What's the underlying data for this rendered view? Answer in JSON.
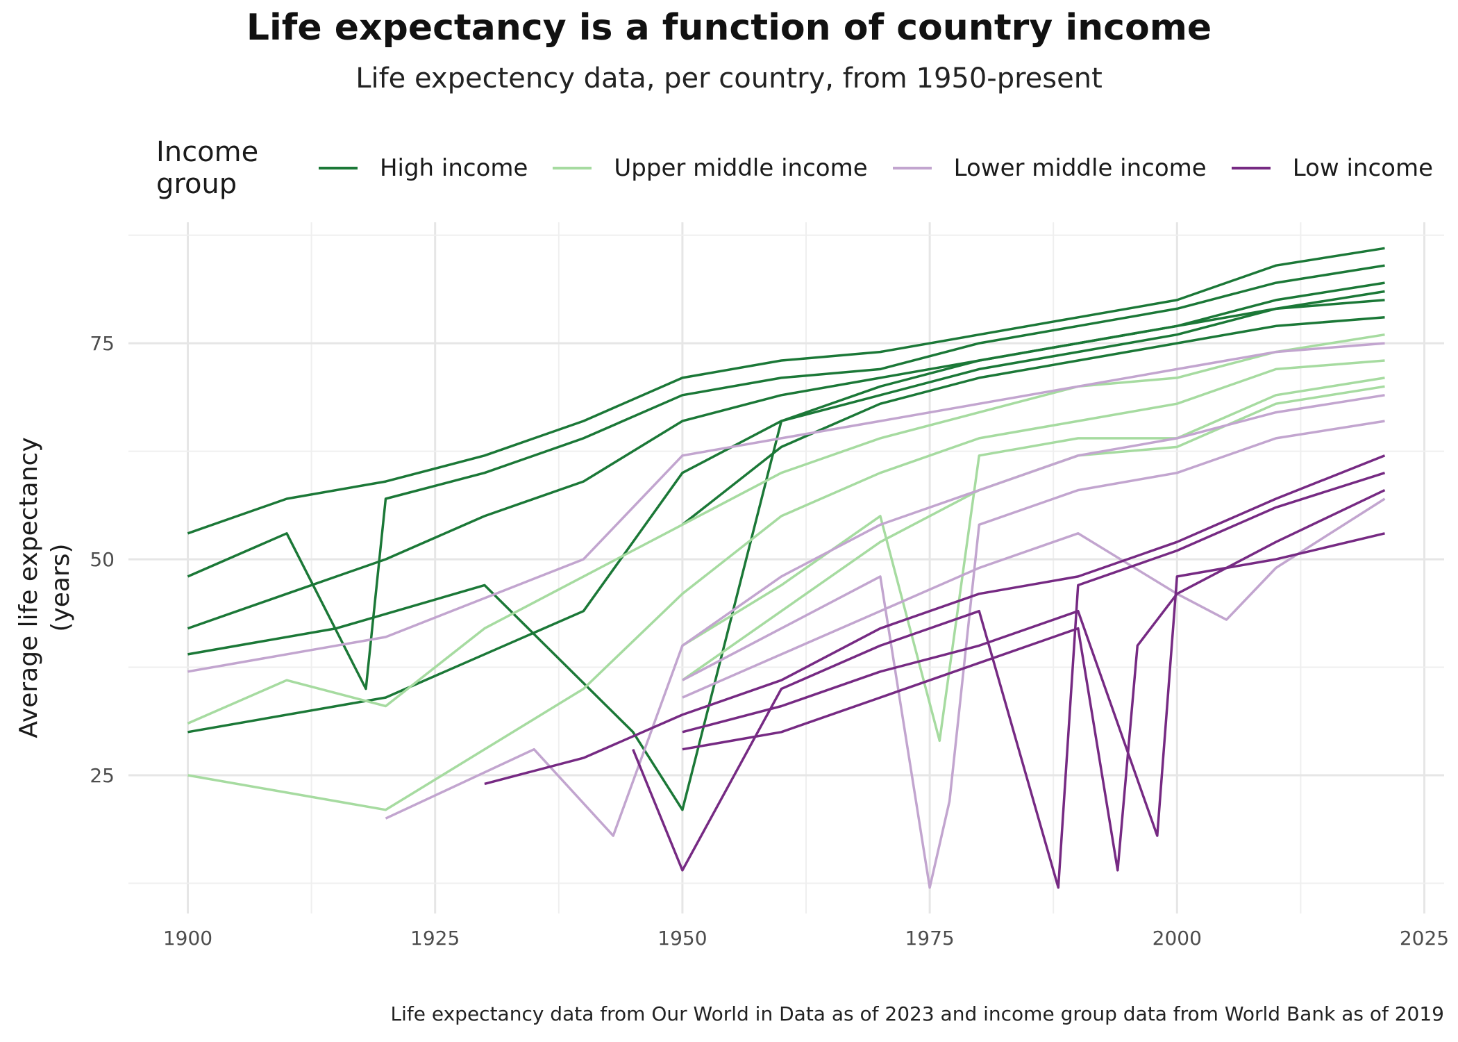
{
  "chart_data": {
    "type": "line",
    "title": "Life expectancy is a function of country income",
    "subtitle": "Life expectency data, per country, from 1950-present",
    "xlabel": "",
    "ylabel": "Average life expectancy\n(years)",
    "caption": "Life expectancy data from Our World in Data as of 2023 and income group data from World Bank as of 2019",
    "xlim": [
      1894,
      2027
    ],
    "ylim": [
      9,
      89
    ],
    "x_ticks": [
      1900,
      1925,
      1950,
      1975,
      2000,
      2025
    ],
    "y_ticks": [
      25,
      50,
      75
    ],
    "grid": true,
    "legend": {
      "title": "Income group",
      "placement": "top",
      "items": [
        {
          "name": "High income",
          "color": "#1b7837"
        },
        {
          "name": "Upper middle income",
          "color": "#a6dba0"
        },
        {
          "name": "Lower middle income",
          "color": "#c2a5cf"
        },
        {
          "name": "Low income",
          "color": "#762a83"
        }
      ]
    },
    "series": [
      {
        "group": "High income",
        "x": [
          1900,
          1910,
          1920,
          1930,
          1940,
          1950,
          1960,
          1970,
          1980,
          1990,
          2000,
          2010,
          2021
        ],
        "y": [
          53,
          57,
          59,
          62,
          66,
          71,
          73,
          74,
          76,
          78,
          80,
          84,
          86
        ]
      },
      {
        "group": "High income",
        "x": [
          1900,
          1910,
          1918,
          1920,
          1930,
          1940,
          1950,
          1960,
          1970,
          1980,
          1990,
          2000,
          2010,
          2021
        ],
        "y": [
          48,
          53,
          35,
          57,
          60,
          64,
          69,
          71,
          72,
          75,
          77,
          79,
          82,
          84
        ]
      },
      {
        "group": "High income",
        "x": [
          1900,
          1910,
          1920,
          1930,
          1940,
          1950,
          1960,
          1970,
          1980,
          1990,
          2000,
          2010,
          2021
        ],
        "y": [
          42,
          46,
          50,
          55,
          59,
          66,
          69,
          71,
          73,
          75,
          77,
          80,
          82
        ]
      },
      {
        "group": "High income",
        "x": [
          1900,
          1915,
          1930,
          1945,
          1950,
          1960,
          1970,
          1980,
          1990,
          2000,
          2010,
          2021
        ],
        "y": [
          39,
          42,
          47,
          30,
          21,
          66,
          69,
          72,
          74,
          76,
          79,
          81
        ]
      },
      {
        "group": "High income",
        "x": [
          1900,
          1920,
          1940,
          1950,
          1960,
          1970,
          1980,
          1990,
          2000,
          2010,
          2021
        ],
        "y": [
          30,
          34,
          44,
          60,
          66,
          70,
          73,
          75,
          77,
          79,
          80
        ]
      },
      {
        "group": "High income",
        "x": [
          1950,
          1960,
          1970,
          1980,
          1990,
          2000,
          2010,
          2021
        ],
        "y": [
          54,
          63,
          68,
          71,
          73,
          75,
          77,
          78
        ]
      },
      {
        "group": "Upper middle income",
        "x": [
          1900,
          1910,
          1920,
          1930,
          1940,
          1950,
          1960,
          1970,
          1980,
          1990,
          2000,
          2010,
          2021
        ],
        "y": [
          31,
          36,
          33,
          42,
          48,
          54,
          60,
          64,
          67,
          70,
          71,
          74,
          76
        ]
      },
      {
        "group": "Upper middle income",
        "x": [
          1900,
          1920,
          1940,
          1950,
          1960,
          1970,
          1980,
          1990,
          2000,
          2010,
          2021
        ],
        "y": [
          25,
          21,
          35,
          46,
          55,
          60,
          64,
          66,
          68,
          72,
          73
        ]
      },
      {
        "group": "Upper middle income",
        "x": [
          1950,
          1960,
          1970,
          1976,
          1980,
          1990,
          2000,
          2010,
          2021
        ],
        "y": [
          40,
          47,
          55,
          29,
          62,
          64,
          64,
          69,
          71
        ]
      },
      {
        "group": "Upper middle income",
        "x": [
          1950,
          1960,
          1970,
          1980,
          1990,
          2000,
          2010,
          2021
        ],
        "y": [
          36,
          44,
          52,
          58,
          62,
          63,
          68,
          70
        ]
      },
      {
        "group": "Lower middle income",
        "x": [
          1900,
          1920,
          1940,
          1950,
          1960,
          1970,
          1980,
          1990,
          2000,
          2010,
          2021
        ],
        "y": [
          37,
          41,
          50,
          62,
          64,
          66,
          68,
          70,
          72,
          74,
          75
        ]
      },
      {
        "group": "Lower middle income",
        "x": [
          1920,
          1935,
          1943,
          1950,
          1960,
          1970,
          1980,
          1990,
          2000,
          2010,
          2021
        ],
        "y": [
          20,
          28,
          18,
          40,
          48,
          54,
          58,
          62,
          64,
          67,
          69
        ]
      },
      {
        "group": "Lower middle income",
        "x": [
          1950,
          1960,
          1970,
          1975,
          1977,
          1980,
          1990,
          2000,
          2010,
          2021
        ],
        "y": [
          36,
          42,
          48,
          12,
          22,
          54,
          58,
          60,
          64,
          66
        ]
      },
      {
        "group": "Lower middle income",
        "x": [
          1950,
          1960,
          1970,
          1980,
          1990,
          2000,
          2005,
          2010,
          2021
        ],
        "y": [
          34,
          39,
          44,
          49,
          53,
          46,
          43,
          49,
          57
        ]
      },
      {
        "group": "Low income",
        "x": [
          1930,
          1940,
          1950,
          1960,
          1970,
          1980,
          1990,
          2000,
          2010,
          2021
        ],
        "y": [
          24,
          27,
          32,
          36,
          42,
          46,
          48,
          52,
          57,
          62
        ]
      },
      {
        "group": "Low income",
        "x": [
          1945,
          1950,
          1960,
          1970,
          1980,
          1988,
          1990,
          2000,
          2010,
          2021
        ],
        "y": [
          28,
          14,
          35,
          40,
          44,
          12,
          47,
          51,
          56,
          60
        ]
      },
      {
        "group": "Low income",
        "x": [
          1950,
          1960,
          1970,
          1980,
          1990,
          1994,
          1996,
          2000,
          2010,
          2021
        ],
        "y": [
          28,
          30,
          34,
          38,
          42,
          14,
          40,
          46,
          52,
          58
        ]
      },
      {
        "group": "Low income",
        "x": [
          1950,
          1960,
          1970,
          1980,
          1990,
          1998,
          2000,
          2010,
          2021
        ],
        "y": [
          30,
          33,
          37,
          40,
          44,
          18,
          48,
          50,
          53
        ]
      }
    ]
  }
}
